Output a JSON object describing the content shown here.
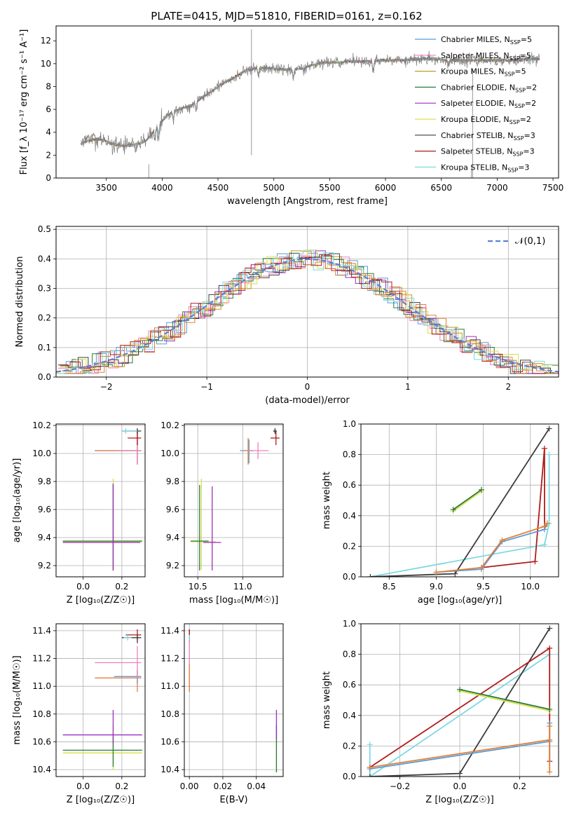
{
  "chart_data": [
    {
      "id": "spectrum",
      "type": "line",
      "title": "PLATE=0415, MJD=51810, FIBERID=0161, z=0.162",
      "xlabel": "wavelength [Angstrom, rest frame]",
      "ylabel": "Flux [f_λ 10⁻¹⁷ erg cm⁻² s⁻¹ A⁻¹]",
      "xlim": [
        3050,
        7550
      ],
      "ylim": [
        0,
        13.3
      ],
      "xticks": [
        3500,
        4000,
        4500,
        5000,
        5500,
        6000,
        6500,
        7000,
        7500
      ],
      "yticks": [
        0,
        2,
        4,
        6,
        8,
        10,
        12
      ],
      "grid": false,
      "legend_position": "top-right",
      "continuum": {
        "x": [
          3270,
          3350,
          3450,
          3550,
          3650,
          3750,
          3850,
          3950,
          4050,
          4150,
          4250,
          4350,
          4450,
          4550,
          4650,
          4750,
          4850,
          4950,
          5050,
          5150,
          5250,
          5350,
          5450,
          5550,
          5650,
          5750,
          5850,
          5950,
          6050,
          6150,
          6250,
          6350,
          6450,
          6550,
          6650,
          6750,
          6850,
          6950,
          7050,
          7150,
          7250,
          7350
        ],
        "y": [
          3.0,
          3.3,
          3.4,
          3.0,
          2.8,
          2.9,
          3.2,
          4.4,
          5.5,
          6.0,
          6.3,
          7.0,
          7.6,
          8.3,
          8.8,
          9.4,
          9.6,
          9.6,
          9.5,
          9.5,
          9.6,
          9.9,
          10.1,
          10.1,
          10.2,
          10.2,
          10.2,
          10.3,
          10.3,
          10.3,
          10.4,
          10.4,
          10.4,
          10.3,
          10.3,
          10.3,
          10.3,
          10.3,
          10.3,
          10.3,
          10.4,
          10.4
        ]
      },
      "series": [
        {
          "name": "Chabrier MILES, N_SSP=5",
          "label_main": "Chabrier MILES, N",
          "label_sub": "SSP",
          "label_end": "=5",
          "color": "#5a9bd5"
        },
        {
          "name": "Salpeter MILES, N_SSP=5",
          "label_main": "Salpeter MILES, N",
          "label_sub": "SSP",
          "label_end": "=5",
          "color": "#f07fbe"
        },
        {
          "name": "Kroupa MILES, N_SSP=5",
          "label_main": "Kroupa MILES, N",
          "label_sub": "SSP",
          "label_end": "=5",
          "color": "#c49a1f"
        },
        {
          "name": "Chabrier ELODIE, N_SSP=2",
          "label_main": "Chabrier ELODIE, N",
          "label_sub": "SSP",
          "label_end": "=2",
          "color": "#2a7a3a"
        },
        {
          "name": "Salpeter ELODIE, N_SSP=2",
          "label_main": "Salpeter ELODIE, N",
          "label_sub": "SSP",
          "label_end": "=2",
          "color": "#9b2fc2"
        },
        {
          "name": "Kroupa ELODIE, N_SSP=2",
          "label_main": "Kroupa ELODIE, N",
          "label_sub": "SSP",
          "label_end": "=2",
          "color": "#d8e04a"
        },
        {
          "name": "Chabrier STELIB, N_SSP=3",
          "label_main": "Chabrier STELIB, N",
          "label_sub": "SSP",
          "label_end": "=3",
          "color": "#3c3c3c"
        },
        {
          "name": "Salpeter STELIB, N_SSP=3",
          "label_main": "Salpeter STELIB, N",
          "label_sub": "SSP",
          "label_end": "=3",
          "color": "#b01b1b"
        },
        {
          "name": "Kroupa STELIB, N_SSP=3",
          "label_main": "Kroupa STELIB, N",
          "label_sub": "SSP",
          "label_end": "=3",
          "color": "#7fd8e0"
        }
      ],
      "data_color": "#7f7f7f",
      "model_color": "#e0803a"
    },
    {
      "id": "residuals",
      "type": "line",
      "title": "",
      "xlabel": "(data-model)/error",
      "ylabel": "Normed distribution",
      "xlim": [
        -2.5,
        2.5
      ],
      "ylim": [
        0,
        0.51
      ],
      "xticks": [
        -2,
        -1,
        0,
        1,
        2
      ],
      "yticks": [
        0.0,
        0.1,
        0.2,
        0.3,
        0.4,
        0.5
      ],
      "grid": true,
      "legend_position": "top-right",
      "reference_label": "𝒩(0,1)",
      "reference_color": "#5a82d8",
      "histogram_colors": [
        "#5a9bd5",
        "#f07fbe",
        "#c49a1f",
        "#2a7a3a",
        "#9b2fc2",
        "#d8e04a",
        "#3c3c3c",
        "#b01b1b",
        "#7fd8e0",
        "#e0803a"
      ]
    },
    {
      "id": "age_vs_Z",
      "type": "scatter",
      "xlabel": "Z [log₁₀(Z/Z☉)]",
      "ylabel": "age  [log₁₀(age/yr)]",
      "xlim": [
        -0.14,
        0.32
      ],
      "ylim": [
        9.12,
        10.21
      ],
      "xticks": [
        0.0,
        0.2
      ],
      "yticks": [
        9.2,
        9.4,
        9.6,
        9.8,
        10.0,
        10.2
      ],
      "grid": true,
      "errorbars": [
        {
          "x": 0.155,
          "y": 9.37,
          "xerr": [
            0.26,
            0.15
          ],
          "yerr": [
            0.21,
            0.45
          ],
          "color": "#d8e04a"
        },
        {
          "x": 0.155,
          "y": 9.375,
          "xerr": [
            0.26,
            0.15
          ],
          "yerr": [
            0.2,
            0.4
          ],
          "color": "#2a7a3a"
        },
        {
          "x": 0.155,
          "y": 9.365,
          "xerr": [
            0.26,
            0.14
          ],
          "yerr": [
            0.2,
            0.42
          ],
          "color": "#9b2fc2"
        },
        {
          "x": 0.28,
          "y": 10.02,
          "xerr": [
            0.22,
            0.02
          ],
          "yerr": [
            0.1,
            0.13
          ],
          "color": "#5a9bd5"
        },
        {
          "x": 0.28,
          "y": 10.02,
          "xerr": [
            0.22,
            0.02
          ],
          "yerr": [
            0.09,
            0.14
          ],
          "color": "#e0803a"
        },
        {
          "x": 0.28,
          "y": 10.02,
          "xerr": [
            0.1,
            0.02
          ],
          "yerr": [
            0.1,
            0.14
          ],
          "color": "#f07fbe"
        },
        {
          "x": 0.28,
          "y": 10.11,
          "xerr": [
            0.05,
            0.02
          ],
          "yerr": [
            0.05,
            0.06
          ],
          "color": "#b01b1b"
        },
        {
          "x": 0.28,
          "y": 10.16,
          "xerr": [
            0.08,
            0.02
          ],
          "yerr": [
            0.02,
            0.02
          ],
          "color": "#3c3c3c"
        },
        {
          "x": 0.22,
          "y": 10.16,
          "xerr": [
            0.02,
            0.06
          ],
          "yerr": [
            0.02,
            0.02
          ],
          "color": "#7fd8e0"
        }
      ]
    },
    {
      "id": "age_vs_mass",
      "type": "scatter",
      "xlabel": "mass [log₁₀(M/M☉)]",
      "ylabel": "",
      "xlim": [
        10.35,
        11.45
      ],
      "ylim": [
        9.12,
        10.21
      ],
      "xticks": [
        10.5,
        11.0
      ],
      "yticks": [
        9.2,
        9.4,
        9.6,
        9.8,
        10.0,
        10.2
      ],
      "grid": true,
      "errorbars": [
        {
          "x": 10.54,
          "y": 9.37,
          "xerr": [
            0.12,
            0.16
          ],
          "yerr": [
            0.2,
            0.45
          ],
          "color": "#d8e04a"
        },
        {
          "x": 10.52,
          "y": 9.375,
          "xerr": [
            0.1,
            0.1
          ],
          "yerr": [
            0.21,
            0.4
          ],
          "color": "#2a7a3a"
        },
        {
          "x": 10.66,
          "y": 9.365,
          "xerr": [
            0.1,
            0.1
          ],
          "yerr": [
            0.2,
            0.4
          ],
          "color": "#9b2fc2"
        },
        {
          "x": 11.07,
          "y": 10.02,
          "xerr": [
            0.1,
            0.05
          ],
          "yerr": [
            0.09,
            0.08
          ],
          "color": "#5a9bd5"
        },
        {
          "x": 11.06,
          "y": 10.02,
          "xerr": [
            0.05,
            0.05
          ],
          "yerr": [
            0.1,
            0.09
          ],
          "color": "#e0803a"
        },
        {
          "x": 11.17,
          "y": 10.02,
          "xerr": [
            0.12,
            0.12
          ],
          "yerr": [
            0.06,
            0.06
          ],
          "color": "#f07fbe"
        },
        {
          "x": 11.37,
          "y": 10.11,
          "xerr": [
            0.06,
            0.04
          ],
          "yerr": [
            0.05,
            0.05
          ],
          "color": "#b01b1b"
        },
        {
          "x": 11.35,
          "y": 10.16,
          "xerr": [
            0.01,
            0.01
          ],
          "yerr": [
            0.01,
            0.01
          ],
          "color": "#7fd8e0"
        },
        {
          "x": 11.36,
          "y": 10.16,
          "xerr": [
            0.02,
            0.02
          ],
          "yerr": [
            0.02,
            0.02
          ],
          "color": "#3c3c3c"
        }
      ]
    },
    {
      "id": "weight_vs_age",
      "type": "line",
      "xlabel": "age  [log₁₀(age/yr)]",
      "ylabel": "mass weight",
      "xlim": [
        8.2,
        10.3
      ],
      "ylim": [
        0,
        1.0
      ],
      "xticks": [
        8.5,
        9.0,
        9.5,
        10.0
      ],
      "yticks": [
        0.0,
        0.2,
        0.4,
        0.6,
        0.8,
        1.0
      ],
      "grid": true,
      "series": [
        {
          "color": "#7fd8e0",
          "x": [
            8.3,
            10.15,
            10.2,
            10.2
          ],
          "y": [
            0.0,
            0.21,
            0.35,
            0.8
          ]
        },
        {
          "color": "#3c3c3c",
          "x": [
            8.3,
            9.2,
            10.2
          ],
          "y": [
            0.0,
            0.02,
            0.97
          ]
        },
        {
          "color": "#b01b1b",
          "x": [
            9.48,
            10.05,
            10.15,
            10.15
          ],
          "y": [
            0.06,
            0.1,
            0.84,
            0.33
          ]
        },
        {
          "color": "#5a9bd5",
          "x": [
            9.0,
            9.48,
            9.7,
            10.15,
            10.18
          ],
          "y": [
            0.03,
            0.05,
            0.23,
            0.31,
            0.35
          ]
        },
        {
          "color": "#e0803a",
          "x": [
            9.0,
            9.48,
            9.7,
            10.15,
            10.18
          ],
          "y": [
            0.03,
            0.06,
            0.24,
            0.33,
            0.35
          ]
        },
        {
          "color": "#d8e04a",
          "x": [
            9.18,
            9.48
          ],
          "y": [
            0.43,
            0.56
          ]
        },
        {
          "color": "#2a7a3a",
          "x": [
            9.18,
            9.48
          ],
          "y": [
            0.44,
            0.57
          ]
        }
      ]
    },
    {
      "id": "mass_vs_Z",
      "type": "scatter",
      "xlabel": "Z [log₁₀(Z/Z☉)]",
      "ylabel": "mass [log₁₀(M/M☉)]",
      "xlim": [
        -0.14,
        0.32
      ],
      "ylim": [
        10.35,
        11.45
      ],
      "xticks": [
        0.0,
        0.2
      ],
      "yticks": [
        10.4,
        10.6,
        10.8,
        11.0,
        11.2,
        11.4
      ],
      "grid": true,
      "errorbars": [
        {
          "x": 0.155,
          "y": 10.52,
          "xerr": [
            0.26,
            0.15
          ],
          "yerr": [
            0.12,
            0.2
          ],
          "color": "#d8e04a"
        },
        {
          "x": 0.155,
          "y": 10.54,
          "xerr": [
            0.26,
            0.15
          ],
          "yerr": [
            0.12,
            0.12
          ],
          "color": "#2a7a3a"
        },
        {
          "x": 0.155,
          "y": 10.65,
          "xerr": [
            0.26,
            0.15
          ],
          "yerr": [
            0.06,
            0.18
          ],
          "color": "#9b2fc2"
        },
        {
          "x": 0.28,
          "y": 11.06,
          "xerr": [
            0.22,
            0.02
          ],
          "yerr": [
            0.1,
            0.05
          ],
          "color": "#e0803a"
        },
        {
          "x": 0.28,
          "y": 11.07,
          "xerr": [
            0.12,
            0.02
          ],
          "yerr": [
            0.05,
            0.05
          ],
          "color": "#5a9bd5"
        },
        {
          "x": 0.28,
          "y": 11.17,
          "xerr": [
            0.22,
            0.02
          ],
          "yerr": [
            0.12,
            0.12
          ],
          "color": "#f07fbe"
        },
        {
          "x": 0.28,
          "y": 11.37,
          "xerr": [
            0.06,
            0.02
          ],
          "yerr": [
            0.04,
            0.04
          ],
          "color": "#b01b1b"
        },
        {
          "x": 0.28,
          "y": 11.35,
          "xerr": [
            0.08,
            0.02
          ],
          "yerr": [
            0.04,
            0.02
          ],
          "color": "#3c3c3c"
        },
        {
          "x": 0.23,
          "y": 11.35,
          "xerr": [
            0.02,
            0.02
          ],
          "yerr": [
            0.02,
            0.02
          ],
          "color": "#7fd8e0"
        }
      ]
    },
    {
      "id": "mass_vs_EBV",
      "type": "scatter",
      "xlabel": "E(B-V)",
      "ylabel": "",
      "xlim": [
        -0.003,
        0.056
      ],
      "ylim": [
        10.35,
        11.45
      ],
      "xticks": [
        0.0,
        0.02,
        0.04
      ],
      "yticks": [
        10.4,
        10.6,
        10.8,
        11.0,
        11.2,
        11.4
      ],
      "grid": true,
      "errorbars": [
        {
          "x": 0.0,
          "y": 11.37,
          "xerr": [
            0,
            0
          ],
          "yerr": [
            0.05,
            0.04
          ],
          "color": "#3c3c3c"
        },
        {
          "x": 0.0,
          "y": 11.17,
          "xerr": [
            0,
            0
          ],
          "yerr": [
            0.2,
            0.2
          ],
          "color": "#f07fbe"
        },
        {
          "x": 0.0,
          "y": 11.06,
          "xerr": [
            0,
            0
          ],
          "yerr": [
            0.1,
            0.1
          ],
          "color": "#e0803a"
        },
        {
          "x": 0.0,
          "y": 11.37,
          "xerr": [
            0,
            0
          ],
          "yerr": [
            0.04,
            0.04
          ],
          "color": "#b01b1b"
        },
        {
          "x": 0.0,
          "y": 11.35,
          "xerr": [
            0,
            0
          ],
          "yerr": [
            0.02,
            0.02
          ],
          "color": "#7fd8e0"
        },
        {
          "x": 0.052,
          "y": 10.55,
          "xerr": [
            0,
            0
          ],
          "yerr": [
            0.17,
            0.17
          ],
          "color": "#d8e04a"
        },
        {
          "x": 0.052,
          "y": 10.52,
          "xerr": [
            0,
            0
          ],
          "yerr": [
            0.14,
            0.2
          ],
          "color": "#2a7a3a"
        },
        {
          "x": 0.052,
          "y": 10.66,
          "xerr": [
            0,
            0
          ],
          "yerr": [
            0.04,
            0.17
          ],
          "color": "#9b2fc2"
        }
      ]
    },
    {
      "id": "weight_vs_Z",
      "type": "line",
      "xlabel": "Z [log₁₀(Z/Z☉)]",
      "ylabel": "mass weight",
      "xlim": [
        -0.33,
        0.33
      ],
      "ylim": [
        0,
        1.0
      ],
      "xticks": [
        -0.2,
        0.0,
        0.2
      ],
      "yticks": [
        0.0,
        0.2,
        0.4,
        0.6,
        0.8,
        1.0
      ],
      "grid": true,
      "series": [
        {
          "color": "#7fd8e0",
          "x": [
            -0.3,
            -0.3,
            0.3
          ],
          "y": [
            0.21,
            0.0,
            0.8
          ]
        },
        {
          "color": "#3c3c3c",
          "x": [
            -0.3,
            0.0,
            0.3
          ],
          "y": [
            0.0,
            0.02,
            0.97
          ]
        },
        {
          "color": "#b01b1b",
          "x": [
            -0.3,
            0.3,
            0.3
          ],
          "y": [
            0.06,
            0.84,
            0.1
          ]
        },
        {
          "color": "#5a9bd5",
          "x": [
            -0.3,
            0.3,
            0.3
          ],
          "y": [
            0.05,
            0.23,
            0.35
          ]
        },
        {
          "color": "#e0803a",
          "x": [
            -0.3,
            0.3,
            0.3,
            0.3
          ],
          "y": [
            0.06,
            0.24,
            0.33,
            0.03
          ]
        },
        {
          "color": "#d8e04a",
          "x": [
            0.0,
            0.3
          ],
          "y": [
            0.56,
            0.43
          ]
        },
        {
          "color": "#2a7a3a",
          "x": [
            0.0,
            0.3
          ],
          "y": [
            0.57,
            0.44
          ]
        }
      ]
    }
  ]
}
